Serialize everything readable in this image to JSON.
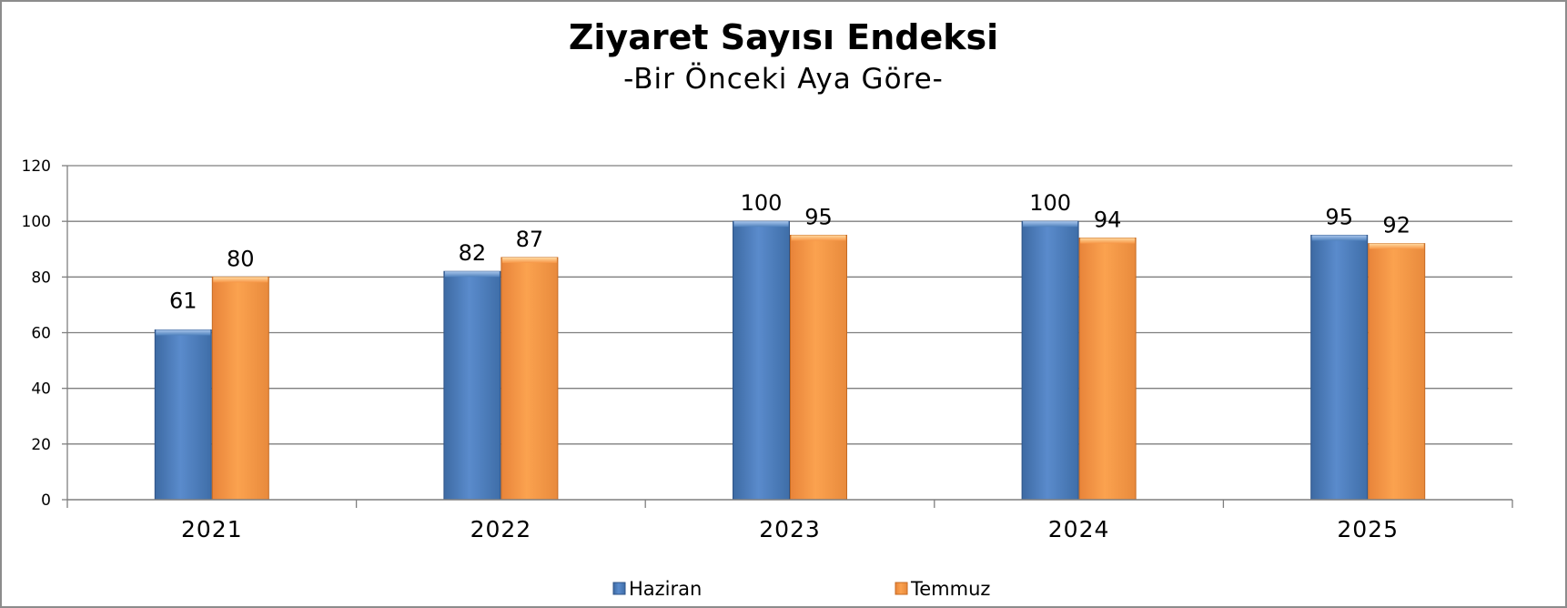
{
  "chart_data": {
    "type": "bar",
    "title": "Ziyaret Sayısı Endeksi",
    "subtitle": "-Bir Önceki Aya Göre-",
    "xlabel": "",
    "ylabel": "",
    "categories": [
      "2021",
      "2022",
      "2023",
      "2024",
      "2025"
    ],
    "series": [
      {
        "name": "Haziran",
        "values": [
          61,
          82,
          100,
          100,
          95
        ],
        "color": "#4f81bd"
      },
      {
        "name": "Temmuz",
        "values": [
          80,
          87,
          95,
          94,
          92
        ],
        "color": "#f79646"
      }
    ],
    "ylim": [
      0,
      120
    ],
    "yticks": [
      "0",
      "20",
      "40",
      "60",
      "80",
      "100",
      "120"
    ],
    "grid": true,
    "legend": "bottom"
  }
}
